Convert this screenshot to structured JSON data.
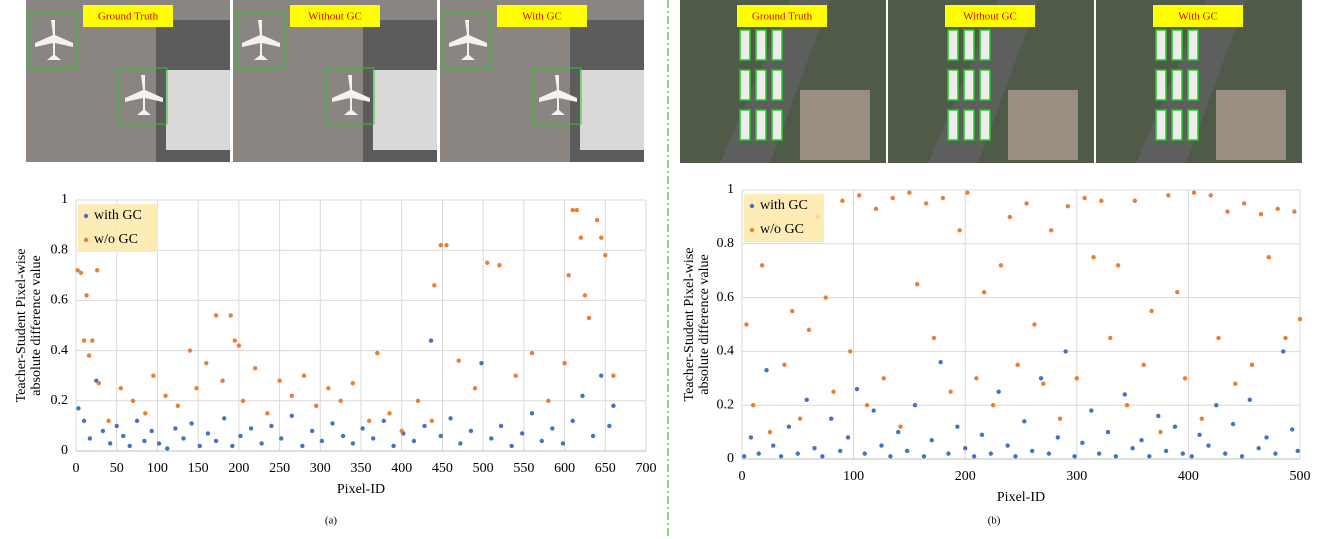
{
  "panels": [
    {
      "images": [
        "Ground Truth",
        "Without GC",
        "With GC"
      ],
      "caption": "(a)"
    },
    {
      "images": [
        "Ground Truth",
        "Without GC",
        "With GC"
      ],
      "caption": "(b)"
    }
  ],
  "chart_data": [
    {
      "type": "scatter",
      "xlabel": "Pixel-ID",
      "ylabel": [
        "Teacher-Student Pixel-wise",
        "absolute difference value"
      ],
      "xlim": [
        0,
        700
      ],
      "xticks": [
        0,
        50,
        100,
        150,
        200,
        250,
        300,
        350,
        400,
        450,
        500,
        550,
        600,
        650,
        700
      ],
      "ylim": [
        0,
        1
      ],
      "yticks": [
        0,
        0.2,
        0.4,
        0.6,
        0.8,
        1
      ],
      "grid": true,
      "legend": "upper left",
      "series": [
        {
          "name": "with GC",
          "color": "#4472c4",
          "x": [
            3,
            10,
            17,
            25,
            33,
            42,
            50,
            58,
            66,
            75,
            84,
            93,
            102,
            112,
            122,
            132,
            142,
            152,
            162,
            172,
            182,
            192,
            202,
            215,
            228,
            240,
            252,
            265,
            278,
            290,
            302,
            315,
            328,
            340,
            352,
            365,
            378,
            390,
            402,
            415,
            428,
            436,
            448,
            460,
            472,
            485,
            498,
            510,
            522,
            535,
            548,
            560,
            572,
            585,
            598,
            610,
            622,
            635,
            645,
            655,
            660
          ],
          "values": [
            0.17,
            0.12,
            0.05,
            0.28,
            0.08,
            0.03,
            0.1,
            0.06,
            0.02,
            0.12,
            0.04,
            0.08,
            0.03,
            0.01,
            0.09,
            0.05,
            0.11,
            0.02,
            0.07,
            0.04,
            0.13,
            0.02,
            0.06,
            0.09,
            0.03,
            0.1,
            0.05,
            0.14,
            0.02,
            0.08,
            0.04,
            0.11,
            0.06,
            0.03,
            0.09,
            0.05,
            0.12,
            0.02,
            0.07,
            0.04,
            0.1,
            0.44,
            0.06,
            0.13,
            0.03,
            0.08,
            0.35,
            0.05,
            0.1,
            0.02,
            0.07,
            0.15,
            0.04,
            0.09,
            0.03,
            0.12,
            0.22,
            0.06,
            0.3,
            0.1,
            0.18
          ]
        },
        {
          "name": "w/o GC",
          "color": "#ed7d31",
          "x": [
            2,
            6,
            10,
            13,
            16,
            20,
            26,
            28,
            40,
            55,
            70,
            85,
            95,
            110,
            125,
            140,
            148,
            160,
            172,
            180,
            190,
            195,
            200,
            205,
            220,
            235,
            250,
            265,
            280,
            295,
            310,
            325,
            340,
            360,
            370,
            385,
            400,
            420,
            437,
            440,
            448,
            455,
            470,
            490,
            505,
            520,
            540,
            560,
            580,
            600,
            605,
            610,
            615,
            620,
            625,
            630,
            640,
            645,
            650,
            660
          ],
          "values": [
            0.72,
            0.71,
            0.44,
            0.62,
            0.38,
            0.44,
            0.72,
            0.27,
            0.12,
            0.25,
            0.2,
            0.15,
            0.3,
            0.22,
            0.18,
            0.4,
            0.25,
            0.35,
            0.54,
            0.28,
            0.54,
            0.44,
            0.42,
            0.2,
            0.33,
            0.15,
            0.28,
            0.22,
            0.3,
            0.18,
            0.25,
            0.2,
            0.27,
            0.12,
            0.39,
            0.15,
            0.08,
            0.2,
            0.12,
            0.66,
            0.82,
            0.82,
            0.36,
            0.25,
            0.75,
            0.74,
            0.3,
            0.39,
            0.2,
            0.35,
            0.7,
            0.96,
            0.96,
            0.85,
            0.62,
            0.53,
            0.92,
            0.85,
            0.78,
            0.3
          ]
        }
      ]
    },
    {
      "type": "scatter",
      "xlabel": "Pixel-ID",
      "ylabel": [
        "Teacher-Student Pixel-wise",
        "absolute difference value"
      ],
      "xlim": [
        0,
        500
      ],
      "xticks": [
        0,
        100,
        200,
        300,
        400,
        500
      ],
      "ylim": [
        0,
        1
      ],
      "yticks": [
        0,
        0.2,
        0.4,
        0.6,
        0.8,
        1
      ],
      "grid": true,
      "legend": "upper left",
      "series": [
        {
          "name": "with GC",
          "color": "#4472c4",
          "x": [
            2,
            8,
            15,
            22,
            28,
            35,
            42,
            50,
            58,
            65,
            72,
            80,
            88,
            95,
            103,
            110,
            118,
            125,
            133,
            140,
            148,
            155,
            163,
            170,
            178,
            185,
            193,
            200,
            208,
            215,
            223,
            230,
            238,
            245,
            253,
            260,
            268,
            275,
            283,
            290,
            298,
            305,
            313,
            320,
            328,
            335,
            343,
            350,
            358,
            365,
            373,
            380,
            388,
            395,
            403,
            410,
            418,
            425,
            433,
            440,
            448,
            455,
            463,
            470,
            478,
            485,
            493,
            498
          ],
          "values": [
            0.01,
            0.08,
            0.02,
            0.33,
            0.05,
            0.01,
            0.12,
            0.02,
            0.22,
            0.04,
            0.01,
            0.15,
            0.03,
            0.08,
            0.26,
            0.02,
            0.18,
            0.05,
            0.01,
            0.1,
            0.03,
            0.2,
            0.01,
            0.07,
            0.36,
            0.02,
            0.12,
            0.04,
            0.01,
            0.09,
            0.02,
            0.25,
            0.05,
            0.01,
            0.14,
            0.03,
            0.3,
            0.02,
            0.08,
            0.4,
            0.01,
            0.06,
            0.18,
            0.02,
            0.1,
            0.01,
            0.24,
            0.04,
            0.07,
            0.01,
            0.16,
            0.03,
            0.12,
            0.02,
            0.01,
            0.09,
            0.05,
            0.2,
            0.02,
            0.13,
            0.01,
            0.22,
            0.04,
            0.08,
            0.02,
            0.4,
            0.11,
            0.03
          ]
        },
        {
          "name": "w/o GC",
          "color": "#ed7d31",
          "x": [
            4,
            10,
            18,
            25,
            30,
            38,
            45,
            52,
            60,
            68,
            75,
            82,
            90,
            97,
            105,
            112,
            120,
            127,
            135,
            142,
            150,
            157,
            165,
            172,
            180,
            187,
            195,
            202,
            210,
            217,
            225,
            232,
            240,
            247,
            255,
            262,
            270,
            277,
            285,
            292,
            300,
            307,
            315,
            322,
            330,
            337,
            345,
            352,
            360,
            367,
            375,
            382,
            390,
            397,
            405,
            412,
            420,
            427,
            435,
            442,
            450,
            457,
            465,
            472,
            480,
            487,
            495,
            500
          ],
          "values": [
            0.5,
            0.2,
            0.72,
            0.1,
            0.87,
            0.35,
            0.55,
            0.15,
            0.48,
            0.9,
            0.6,
            0.25,
            0.96,
            0.4,
            0.98,
            0.2,
            0.93,
            0.3,
            0.97,
            0.12,
            0.99,
            0.65,
            0.95,
            0.45,
            0.97,
            0.25,
            0.85,
            0.99,
            0.3,
            0.62,
            0.2,
            0.72,
            0.9,
            0.35,
            0.95,
            0.5,
            0.28,
            0.85,
            0.15,
            0.94,
            0.3,
            0.97,
            0.75,
            0.96,
            0.45,
            0.72,
            0.2,
            0.96,
            0.35,
            0.55,
            0.1,
            0.98,
            0.62,
            0.3,
            0.99,
            0.15,
            0.98,
            0.45,
            0.92,
            0.28,
            0.95,
            0.35,
            0.91,
            0.75,
            0.93,
            0.45,
            0.92,
            0.52
          ]
        }
      ]
    }
  ]
}
